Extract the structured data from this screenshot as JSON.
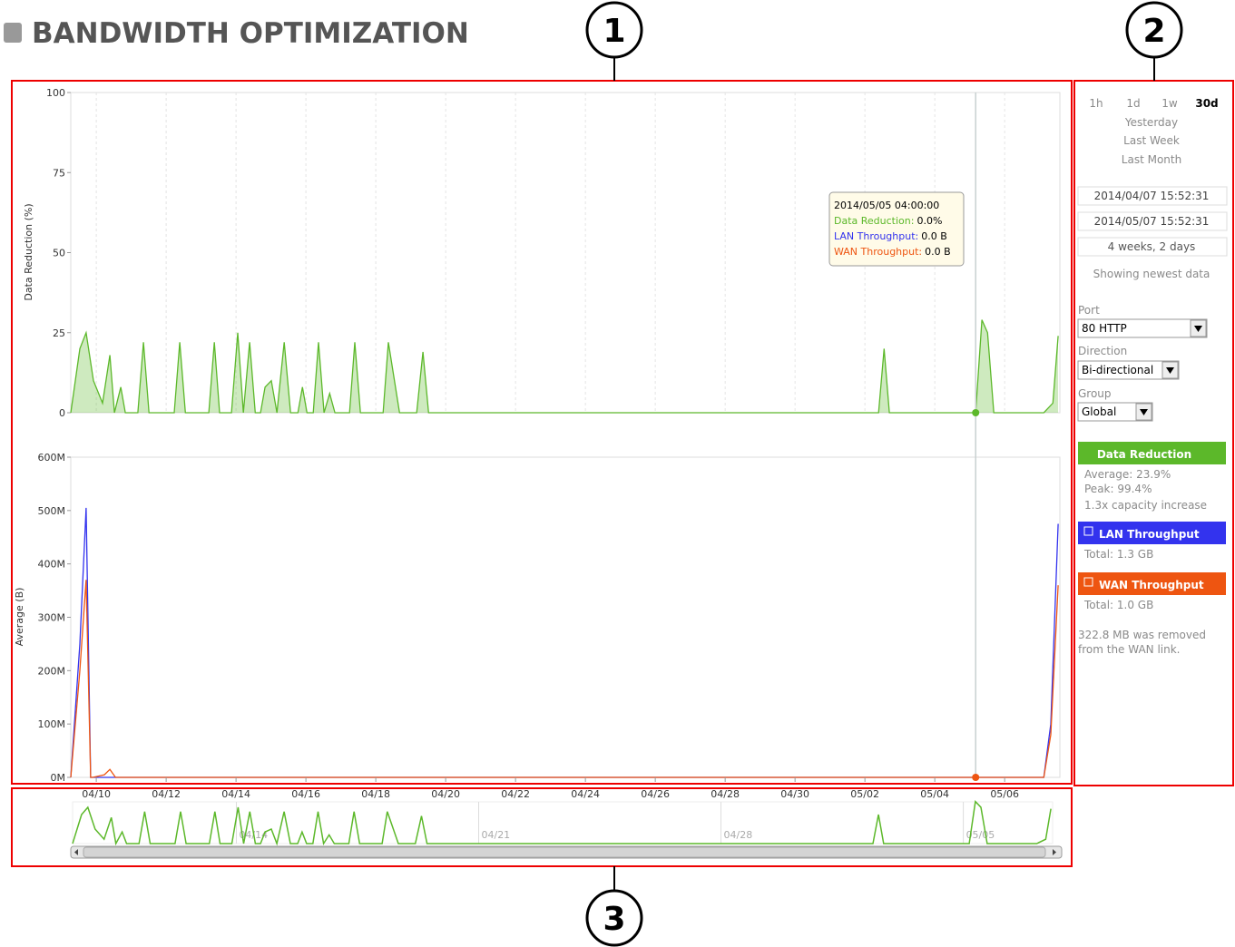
{
  "header": {
    "title": "BANDWIDTH OPTIMIZATION"
  },
  "callouts": [
    "1",
    "2",
    "3"
  ],
  "chart_data": [
    {
      "type": "area",
      "y_label": "Data Reduction (%)",
      "x": [
        9.27,
        9.53,
        9.71,
        9.92,
        10.18,
        10.39,
        10.52,
        10.7,
        10.83,
        11.19,
        11.35,
        11.51,
        12.23,
        12.39,
        12.55,
        13.22,
        13.38,
        13.53,
        13.87,
        14.05,
        14.21,
        14.39,
        14.55,
        14.7,
        14.83,
        15.01,
        15.17,
        15.38,
        15.56,
        15.77,
        15.9,
        16.03,
        16.21,
        16.36,
        16.52,
        16.68,
        16.83,
        17.25,
        17.4,
        17.56,
        18.21,
        18.36,
        18.68,
        19.17,
        19.35,
        19.51,
        32.39,
        32.55,
        32.7,
        35.17,
        35.35,
        35.51,
        35.69,
        37.12,
        37.38,
        37.53
      ],
      "series": [
        {
          "name": "Data Reduction",
          "color": "#5cb82a",
          "values": [
            0,
            20,
            25,
            10,
            3,
            18,
            0,
            8,
            0,
            0,
            22,
            0,
            0,
            22,
            0,
            0,
            22,
            0,
            0,
            25,
            0,
            22,
            0,
            0,
            8,
            10,
            0,
            22,
            0,
            0,
            8,
            0,
            0,
            22,
            0,
            6,
            0,
            0,
            22,
            0,
            0,
            22,
            0,
            0,
            19,
            0,
            0,
            20,
            0,
            0,
            29,
            25,
            0,
            0,
            3,
            24
          ]
        }
      ],
      "xlim": [
        9.27,
        37.58
      ],
      "ylim": [
        0,
        100
      ],
      "yticks": [
        0,
        25,
        50,
        75,
        100
      ],
      "grid": true,
      "crosshair_x": 35.17
    },
    {
      "type": "line",
      "y_label": "Average (B)",
      "x": [
        9.27,
        9.53,
        9.71,
        9.84,
        9.9,
        10.23,
        10.39,
        10.55,
        37.12,
        37.32,
        37.53
      ],
      "series": [
        {
          "name": "LAN Throughput",
          "color": "#3333ee",
          "values": [
            0,
            250000000,
            505000000,
            0,
            0,
            0,
            0,
            0,
            0,
            100000000,
            475000000
          ]
        },
        {
          "name": "WAN Throughput",
          "color": "#ee5511",
          "values": [
            0,
            200000000,
            370000000,
            0,
            0,
            5000000,
            15000000,
            0,
            0,
            80000000,
            360000000
          ]
        }
      ],
      "xlim": [
        9.27,
        37.58
      ],
      "ylim": [
        0,
        600000000
      ],
      "yticks": [
        {
          "value": 0,
          "label": "0M"
        },
        {
          "value": 100000000,
          "label": "100M"
        },
        {
          "value": 200000000,
          "label": "200M"
        },
        {
          "value": 300000000,
          "label": "300M"
        },
        {
          "value": 400000000,
          "label": "400M"
        },
        {
          "value": 500000000,
          "label": "500M"
        },
        {
          "value": 600000000,
          "label": "600M"
        }
      ],
      "xticks": [
        {
          "value": 10,
          "label": "04/10"
        },
        {
          "value": 12,
          "label": "04/12"
        },
        {
          "value": 14,
          "label": "04/14"
        },
        {
          "value": 16,
          "label": "04/16"
        },
        {
          "value": 18,
          "label": "04/18"
        },
        {
          "value": 20,
          "label": "04/20"
        },
        {
          "value": 22,
          "label": "04/22"
        },
        {
          "value": 24,
          "label": "04/24"
        },
        {
          "value": 26,
          "label": "04/26"
        },
        {
          "value": 28,
          "label": "04/28"
        },
        {
          "value": 30,
          "label": "04/30"
        },
        {
          "value": 32,
          "label": "05/02"
        },
        {
          "value": 34,
          "label": "05/04"
        },
        {
          "value": 36,
          "label": "05/06"
        }
      ]
    }
  ],
  "tooltip": {
    "time": "2014/05/05 04:00:00",
    "rows": [
      {
        "label": "Data Reduction:",
        "value": "0.0%"
      },
      {
        "label": "LAN Throughput:",
        "value": "0.0 B"
      },
      {
        "label": "WAN Throughput:",
        "value": "0.0 B"
      }
    ]
  },
  "navigator": {
    "labels": [
      {
        "value": 14,
        "label": "04/14"
      },
      {
        "value": 21,
        "label": "04/21"
      },
      {
        "value": 28,
        "label": "04/28"
      },
      {
        "value": 35,
        "label": "05/05"
      }
    ]
  },
  "sidebar": {
    "ranges": [
      "1h",
      "1d",
      "1w",
      "30d"
    ],
    "presets": [
      "Yesterday",
      "Last Week",
      "Last Month"
    ],
    "start": "2014/04/07 15:52:31",
    "end": "2014/05/07 15:52:31",
    "duration": "4 weeks, 2 days",
    "status": "Showing newest data",
    "port": {
      "label": "Port",
      "value": "80 HTTP"
    },
    "direction": {
      "label": "Direction",
      "value": "Bi-directional"
    },
    "group": {
      "label": "Group",
      "value": "Global"
    },
    "data_reduction_stats": [
      "Average: 23.9%",
      "Peak: 99.4%",
      "1.3x capacity increase"
    ],
    "lan_total": "Total: 1.3 GB",
    "wan_total": "Total: 1.0 GB",
    "note": [
      "322.8 MB was removed",
      "from the WAN link."
    ]
  }
}
